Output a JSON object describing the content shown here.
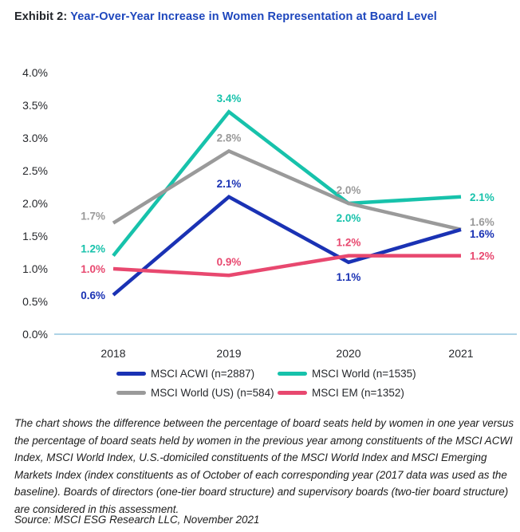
{
  "title": {
    "prefix": "Exhibit 2:",
    "main": "Year-Over-Year Increase in Women Representation at Board Level"
  },
  "chart_data": {
    "type": "line",
    "title": "Year-Over-Year Increase in Women Representation at Board Level",
    "categories": [
      "2018",
      "2019",
      "2020",
      "2021"
    ],
    "y_ticks": [
      "4.0%",
      "3.5%",
      "3.0%",
      "2.5%",
      "2.0%",
      "1.5%",
      "1.0%",
      "0.5%",
      "0.0%"
    ],
    "ylim": [
      0,
      4
    ],
    "unit": "%",
    "grid": false,
    "legend_position": "bottom",
    "axis_text_color": "#26282c",
    "baseline_color": "#aed4e6",
    "series": [
      {
        "name": "MSCI ACWI (n=2887)",
        "color": "#1a32b4",
        "values": [
          0.6,
          2.1,
          1.1,
          1.6
        ],
        "point_labels": [
          "0.6%",
          "2.1%",
          "1.1%",
          "1.6%"
        ],
        "label_pos": [
          "left",
          "above",
          "below",
          "right-below"
        ]
      },
      {
        "name": "MSCI World (n=1535)",
        "color": "#17c2ab",
        "values": [
          1.2,
          3.4,
          2.0,
          2.1
        ],
        "point_labels": [
          "1.2%",
          "3.4%",
          "2.0%",
          "2.1%"
        ],
        "label_pos": [
          "left-above",
          "above",
          "below",
          "right"
        ]
      },
      {
        "name": "MSCI World (US) (n=584)",
        "color": "#9a9a9a",
        "values": [
          1.7,
          2.8,
          2.0,
          1.6
        ],
        "point_labels": [
          "1.7%",
          "2.8%",
          "2.0%",
          "1.6%"
        ],
        "label_pos": [
          "left-above",
          "above",
          "above",
          "right-above"
        ]
      },
      {
        "name": "MSCI EM (n=1352)",
        "color": "#e8486f",
        "values": [
          1.0,
          0.9,
          1.2,
          1.2
        ],
        "point_labels": [
          "1.0%",
          "0.9%",
          "1.2%",
          "1.2%"
        ],
        "label_pos": [
          "left",
          "above",
          "above",
          "right"
        ]
      }
    ],
    "draw_order": [
      1,
      2,
      0,
      3
    ]
  },
  "footnote": "The chart shows the difference between the percentage of board seats held by women in one year versus the percentage of board seats held by women in the previous year among constituents of the MSCI ACWI Index, MSCI World Index, U.S.-domiciled constituents of the MSCI World Index and MSCI Emerging Markets Index (index constituents as of October of each corresponding year (2017 data was used as the baseline). Boards of directors (one-tier board structure) and supervisory boards (two-tier board structure) are considered in this assessment.",
  "source": "Source: MSCI ESG Research LLC, November 2021"
}
